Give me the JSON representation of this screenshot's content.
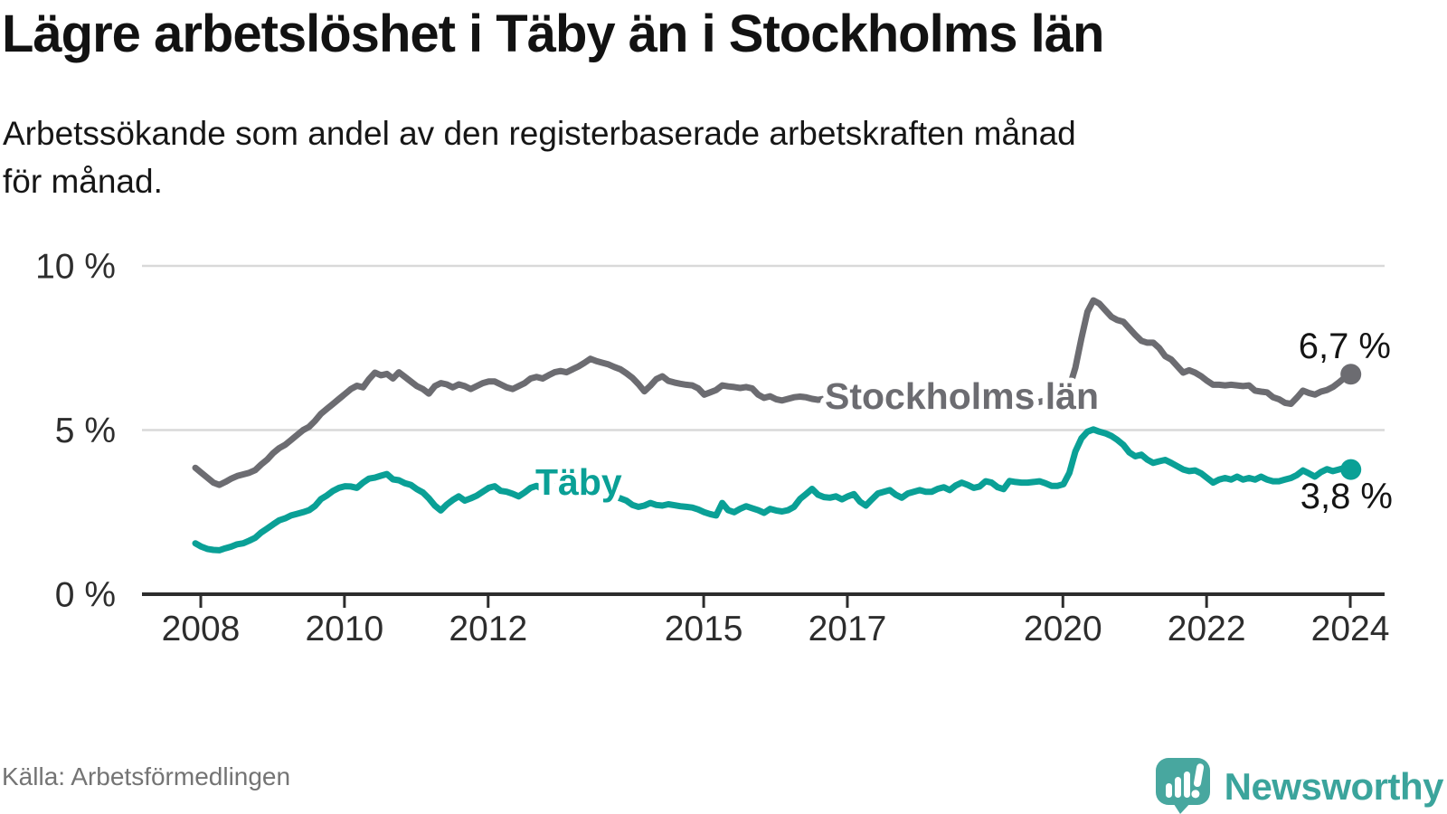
{
  "title": "Lägre arbetslöshet i Täby än i Stockholms län",
  "subtitle_lines": [
    "Arbetssökande som andel av den registerbaserade arbetskraften månad",
    "för månad."
  ],
  "source": "Källa: Arbetsförmedlingen",
  "brand": {
    "name": "Newsworthy",
    "icon": "speech-bubble-bar-chart-icon",
    "icon_color": "#48a79f",
    "wordmark_color": "#3ba49c"
  },
  "colors": {
    "stockholm_line": "#6c6c71",
    "taby_line": "#0aa096",
    "gridline": "#d9d9d9",
    "axis": "#2d2d2d",
    "text": "#141414"
  },
  "chart_data": {
    "type": "line",
    "title": "Lägre arbetslöshet i Täby än i Stockholms län",
    "subtitle": "Arbetssökande som andel av den registerbaserade arbetskraften månad för månad.",
    "frequency": "monthly",
    "x_start": "2008-01",
    "x_end": "2024-02",
    "grid": "horizontal",
    "legend": "inline-labels",
    "ylim": [
      0,
      10
    ],
    "y_axis": {
      "unit": "%",
      "tick_values": [
        0,
        5,
        10
      ],
      "tick_labels": [
        "0 %",
        "5 %",
        "10 %"
      ]
    },
    "x_ticks": [
      {
        "year": 2008,
        "label": "2008"
      },
      {
        "year": 2010,
        "label": "2010"
      },
      {
        "year": 2012,
        "label": "2012"
      },
      {
        "year": 2015,
        "label": "2015"
      },
      {
        "year": 2017,
        "label": "2017"
      },
      {
        "year": 2020,
        "label": "2020"
      },
      {
        "year": 2022,
        "label": "2022"
      },
      {
        "year": 2024,
        "label": "2024"
      }
    ],
    "series": [
      {
        "name": "Stockholms län",
        "color": "#6c6c71",
        "end_label": "6,7 %",
        "end_value": 6.7,
        "values": [
          3.85,
          3.7,
          3.55,
          3.4,
          3.33,
          3.42,
          3.52,
          3.6,
          3.65,
          3.7,
          3.78,
          3.95,
          4.1,
          4.3,
          4.45,
          4.55,
          4.7,
          4.85,
          5.0,
          5.1,
          5.28,
          5.5,
          5.65,
          5.8,
          5.95,
          6.1,
          6.25,
          6.35,
          6.3,
          6.55,
          6.75,
          6.67,
          6.71,
          6.57,
          6.76,
          6.62,
          6.48,
          6.34,
          6.25,
          6.11,
          6.34,
          6.43,
          6.39,
          6.3,
          6.39,
          6.34,
          6.25,
          6.34,
          6.43,
          6.48,
          6.48,
          6.39,
          6.3,
          6.25,
          6.34,
          6.43,
          6.57,
          6.62,
          6.57,
          6.67,
          6.76,
          6.8,
          6.76,
          6.85,
          6.94,
          7.05,
          7.17,
          7.1,
          7.05,
          7.0,
          6.92,
          6.85,
          6.73,
          6.59,
          6.4,
          6.18,
          6.35,
          6.55,
          6.64,
          6.5,
          6.45,
          6.41,
          6.38,
          6.36,
          6.27,
          6.08,
          6.15,
          6.22,
          6.36,
          6.33,
          6.31,
          6.28,
          6.31,
          6.27,
          6.08,
          5.98,
          6.03,
          5.94,
          5.9,
          5.95,
          6.0,
          6.02,
          6.0,
          5.95,
          5.92,
          5.95,
          6.0,
          6.02,
          6.0,
          5.95,
          5.9,
          5.87,
          5.9,
          5.95,
          5.92,
          5.87,
          5.9,
          5.93,
          5.9,
          5.93,
          5.9,
          5.85,
          5.8,
          5.85,
          5.88,
          5.85,
          5.8,
          5.76,
          5.8,
          5.84,
          5.8,
          5.84,
          5.8,
          5.76,
          5.72,
          5.76,
          5.8,
          5.85,
          5.9,
          5.86,
          5.82,
          5.86,
          5.9,
          5.94,
          5.95,
          6.0,
          6.3,
          6.9,
          7.8,
          8.6,
          8.95,
          8.85,
          8.65,
          8.45,
          8.35,
          8.3,
          8.1,
          7.9,
          7.72,
          7.66,
          7.66,
          7.5,
          7.25,
          7.15,
          6.95,
          6.75,
          6.82,
          6.75,
          6.64,
          6.5,
          6.38,
          6.38,
          6.36,
          6.38,
          6.36,
          6.34,
          6.36,
          6.2,
          6.17,
          6.15,
          6.0,
          5.94,
          5.83,
          5.8,
          5.99,
          6.2,
          6.13,
          6.08,
          6.17,
          6.22,
          6.31,
          6.45,
          6.6,
          6.7
        ]
      },
      {
        "name": "Täby",
        "color": "#0aa096",
        "end_label": "3,8 %",
        "end_value": 3.8,
        "values": [
          1.55,
          1.45,
          1.38,
          1.35,
          1.34,
          1.4,
          1.45,
          1.52,
          1.55,
          1.63,
          1.72,
          1.88,
          2.0,
          2.13,
          2.25,
          2.31,
          2.4,
          2.45,
          2.5,
          2.56,
          2.69,
          2.9,
          3.01,
          3.15,
          3.24,
          3.29,
          3.28,
          3.24,
          3.4,
          3.52,
          3.55,
          3.61,
          3.66,
          3.5,
          3.47,
          3.38,
          3.33,
          3.2,
          3.1,
          2.92,
          2.7,
          2.55,
          2.73,
          2.87,
          2.98,
          2.85,
          2.92,
          3.0,
          3.12,
          3.24,
          3.29,
          3.15,
          3.12,
          3.06,
          2.98,
          3.1,
          3.24,
          3.3,
          3.2,
          3.26,
          3.3,
          3.36,
          3.32,
          3.28,
          3.24,
          3.3,
          3.24,
          3.18,
          3.1,
          3.05,
          2.98,
          2.92,
          2.85,
          2.72,
          2.66,
          2.7,
          2.78,
          2.72,
          2.7,
          2.74,
          2.71,
          2.68,
          2.66,
          2.64,
          2.58,
          2.5,
          2.44,
          2.4,
          2.78,
          2.56,
          2.5,
          2.6,
          2.68,
          2.62,
          2.56,
          2.48,
          2.6,
          2.55,
          2.52,
          2.56,
          2.66,
          2.9,
          3.05,
          3.21,
          3.03,
          2.96,
          2.94,
          2.98,
          2.89,
          2.98,
          3.05,
          2.82,
          2.7,
          2.89,
          3.07,
          3.12,
          3.17,
          3.03,
          2.94,
          3.07,
          3.12,
          3.17,
          3.12,
          3.12,
          3.21,
          3.26,
          3.17,
          3.31,
          3.4,
          3.33,
          3.24,
          3.28,
          3.44,
          3.4,
          3.26,
          3.2,
          3.45,
          3.42,
          3.4,
          3.4,
          3.42,
          3.44,
          3.38,
          3.3,
          3.3,
          3.35,
          3.7,
          4.35,
          4.75,
          4.95,
          5.02,
          4.95,
          4.9,
          4.82,
          4.7,
          4.55,
          4.32,
          4.2,
          4.25,
          4.1,
          4.0,
          4.05,
          4.09,
          4.0,
          3.9,
          3.8,
          3.75,
          3.77,
          3.68,
          3.54,
          3.4,
          3.49,
          3.54,
          3.49,
          3.58,
          3.49,
          3.54,
          3.49,
          3.58,
          3.49,
          3.44,
          3.44,
          3.49,
          3.54,
          3.63,
          3.77,
          3.68,
          3.58,
          3.72,
          3.81,
          3.75,
          3.8,
          3.85,
          3.8
        ]
      }
    ]
  }
}
